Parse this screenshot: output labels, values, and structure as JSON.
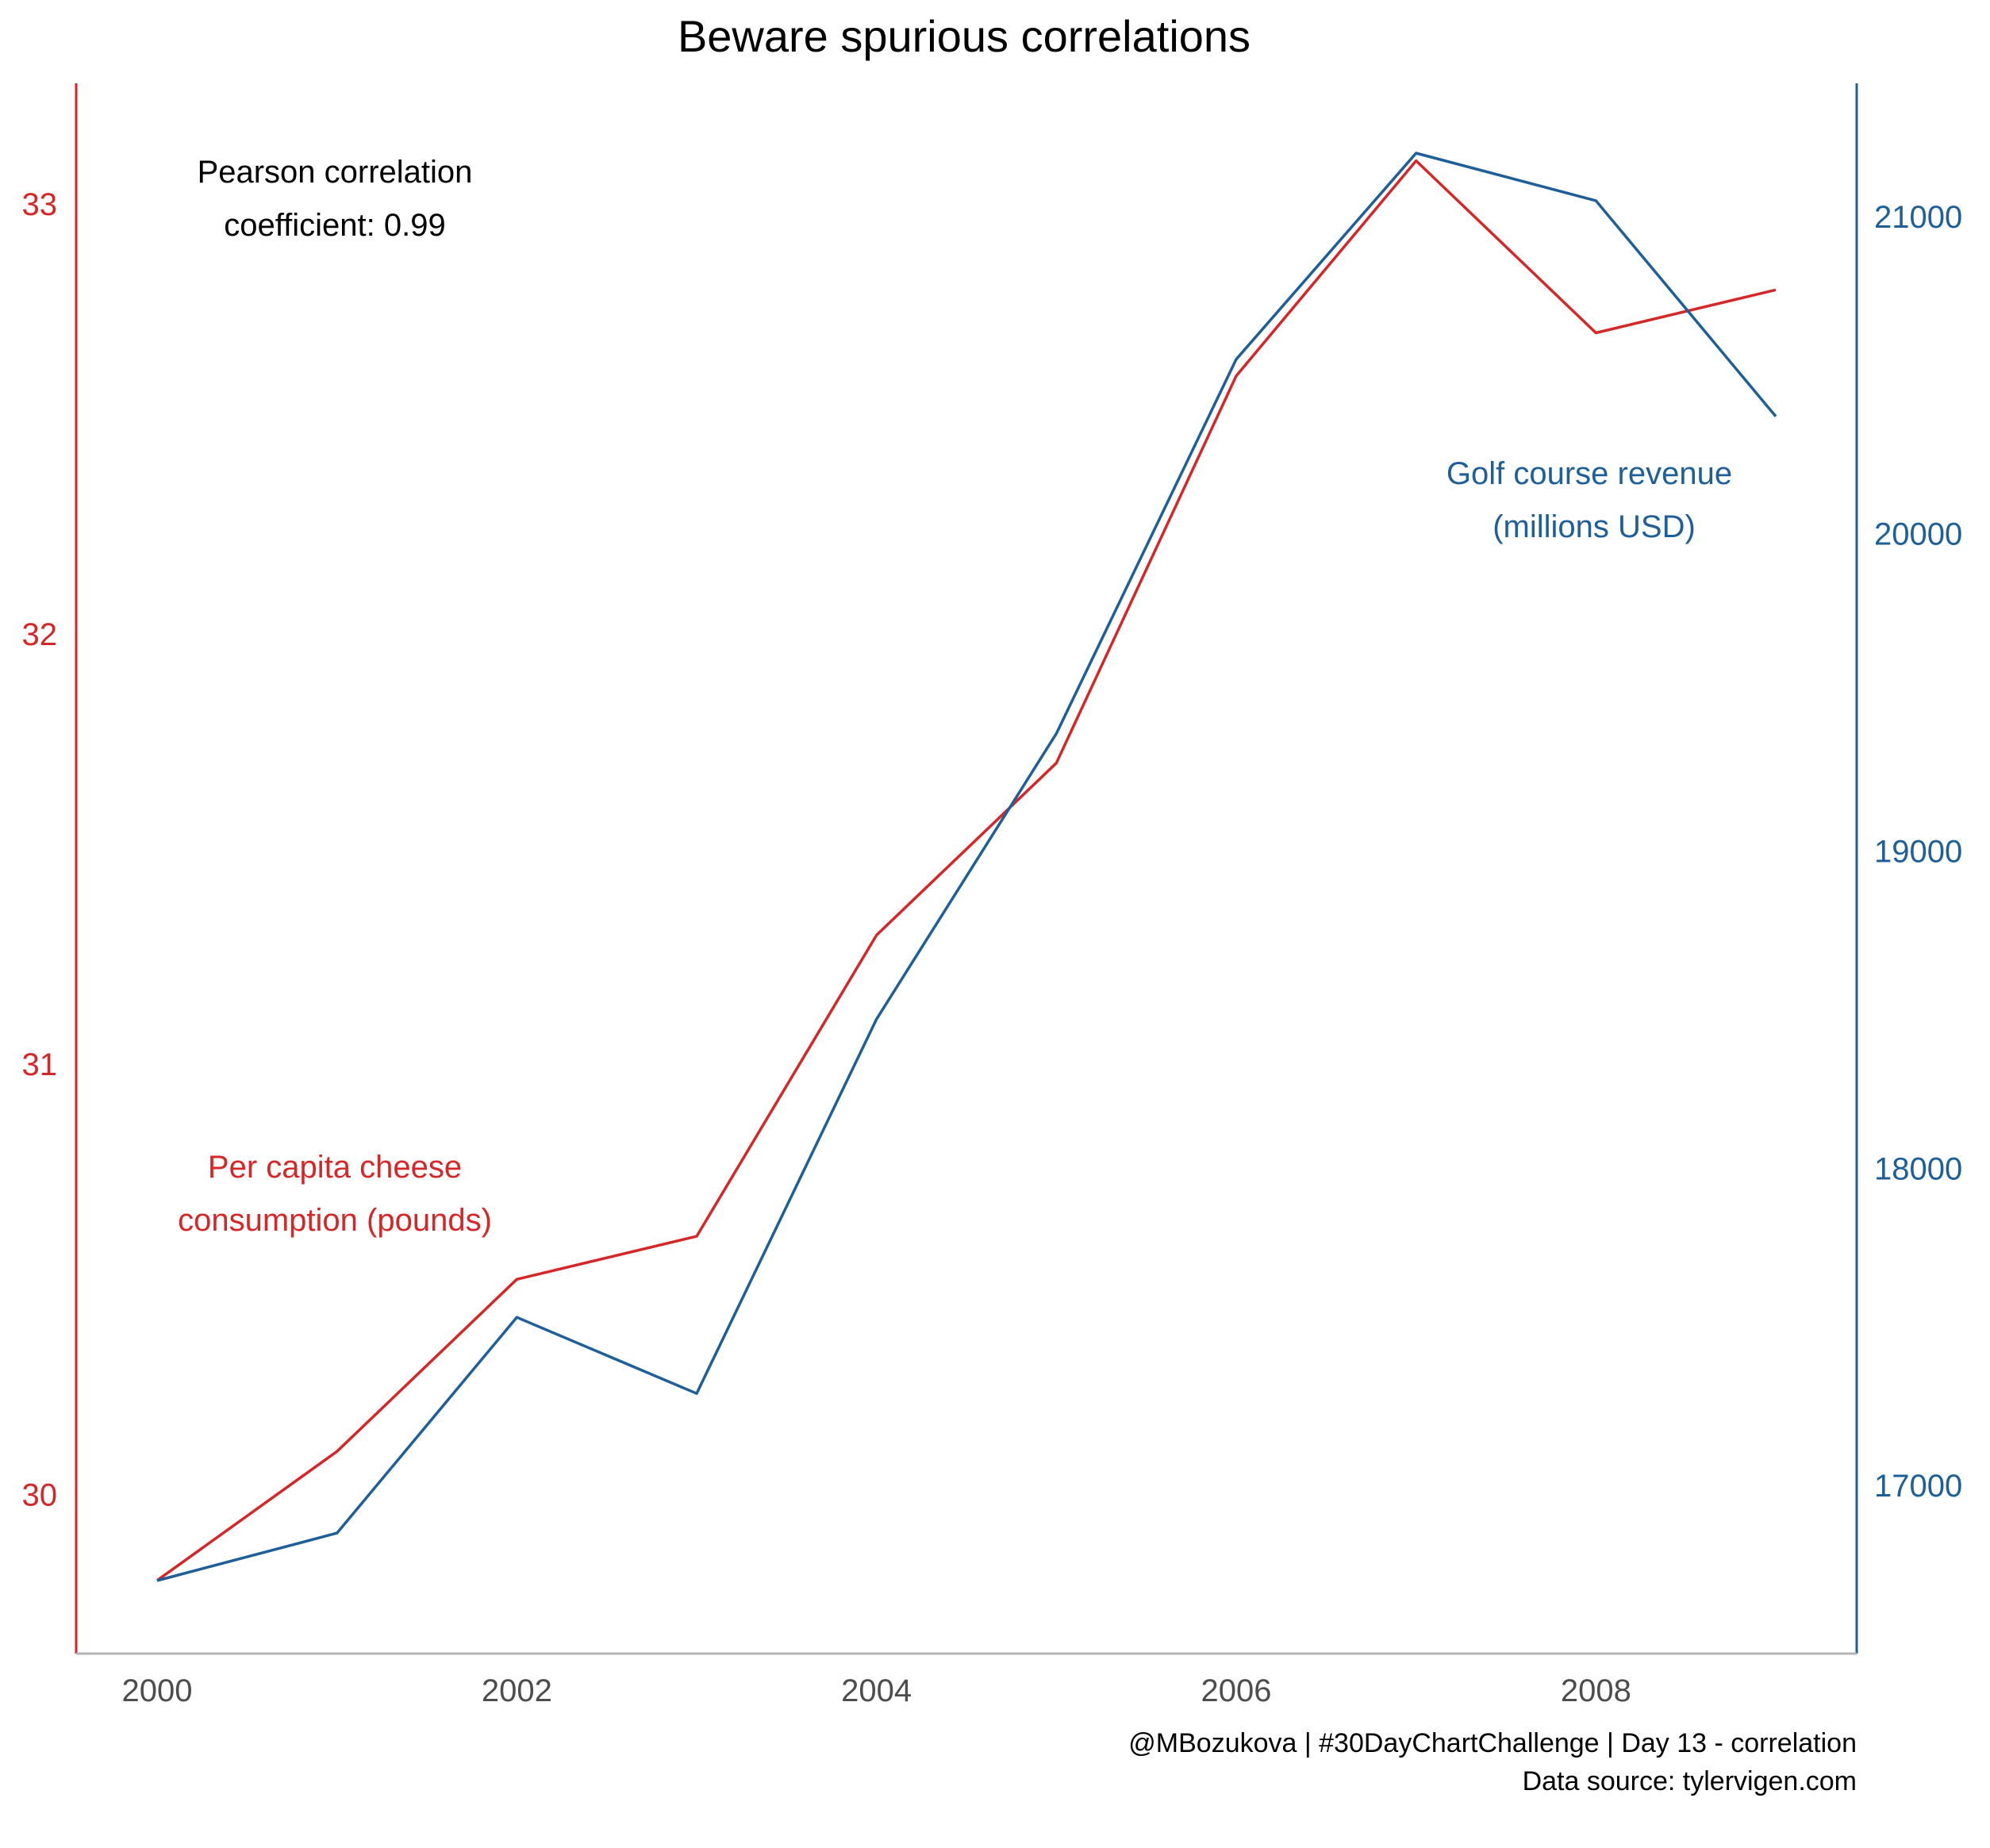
{
  "chart_data": {
    "type": "line",
    "title": "Beware spurious correlations",
    "x": [
      2000,
      2001,
      2002,
      2003,
      2004,
      2005,
      2006,
      2007,
      2008,
      2009
    ],
    "x_ticks": [
      2000,
      2002,
      2004,
      2006,
      2008
    ],
    "xlim": [
      1999.55,
      2009.45
    ],
    "series": [
      {
        "name": "Per capita cheese consumption (pounds)",
        "axis": "left",
        "color": "#d62728",
        "values": [
          29.8,
          30.1,
          30.5,
          30.6,
          31.3,
          31.7,
          32.6,
          33.1,
          32.7,
          32.8
        ]
      },
      {
        "name": "Golf course revenue (millions USD)",
        "axis": "right",
        "color": "#1f5f99",
        "values": [
          16700,
          16850,
          17530,
          17290,
          18470,
          19370,
          20550,
          21200,
          21050,
          20370
        ]
      }
    ],
    "y_left": {
      "ticks": [
        30,
        31,
        32,
        33
      ],
      "ylim": [
        29.63,
        33.28
      ],
      "color": "#d62728"
    },
    "y_right": {
      "ticks": [
        17000,
        18000,
        19000,
        20000,
        21000
      ],
      "ylim": [
        16470,
        21420
      ],
      "color": "#1f5f99"
    },
    "annotations": {
      "pearson": [
        "Pearson correlation",
        "coefficient: 0.99"
      ],
      "cheese_label": [
        "Per capita cheese",
        "consumption (pounds)"
      ],
      "golf_label": [
        "Golf course revenue",
        "(millions USD)"
      ]
    },
    "caption": [
      "@MBozukova | #30DayChartChallenge | Day 13 - correlation",
      "Data source: tylervigen.com"
    ],
    "grid": false
  }
}
